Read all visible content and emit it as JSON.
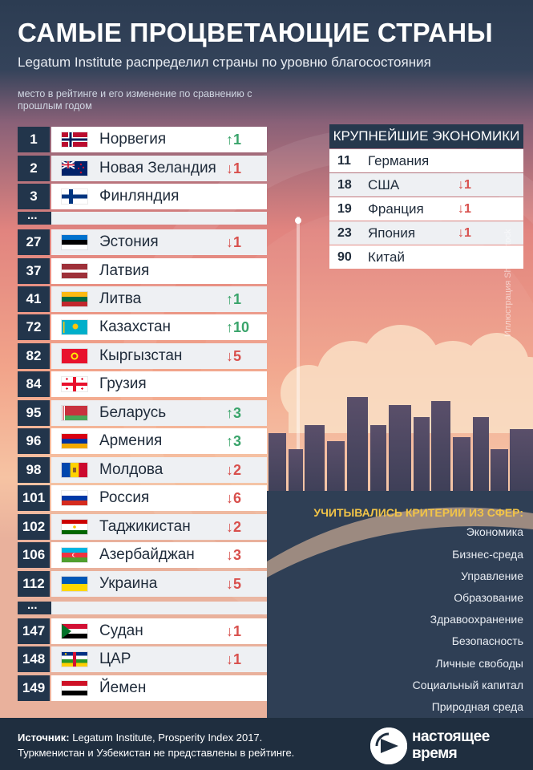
{
  "header": {
    "title": "САМЫЕ ПРОЦВЕТАЮЩИЕ СТРАНЫ",
    "subtitle": "Legatum Institute распределил страны по уровню благосостояния",
    "note": "место в рейтинге и его изменение по сравнению с прошлым годом"
  },
  "ranking": [
    {
      "rank": "1",
      "country": "Норвегия",
      "change": "↑1",
      "dir": "up",
      "flag": "norway"
    },
    {
      "rank": "2",
      "country": "Новая Зеландия",
      "change": "↓1",
      "dir": "down",
      "flag": "new-zealand"
    },
    {
      "rank": "3",
      "country": "Финляндия",
      "change": "",
      "dir": "",
      "flag": "finland"
    },
    {
      "rank": "27",
      "country": "Эстония",
      "change": "↓1",
      "dir": "down",
      "flag": "estonia"
    },
    {
      "rank": "37",
      "country": "Латвия",
      "change": "",
      "dir": "",
      "flag": "latvia"
    },
    {
      "rank": "41",
      "country": "Литва",
      "change": "↑1",
      "dir": "up",
      "flag": "lithuania"
    },
    {
      "rank": "72",
      "country": "Казахстан",
      "change": "↑10",
      "dir": "up",
      "flag": "kazakhstan"
    },
    {
      "rank": "82",
      "country": "Кыргызстан",
      "change": "↓5",
      "dir": "down",
      "flag": "kyrgyzstan"
    },
    {
      "rank": "84",
      "country": "Грузия",
      "change": "",
      "dir": "",
      "flag": "georgia"
    },
    {
      "rank": "95",
      "country": "Беларусь",
      "change": "↑3",
      "dir": "up",
      "flag": "belarus"
    },
    {
      "rank": "96",
      "country": "Армения",
      "change": "↑3",
      "dir": "up",
      "flag": "armenia"
    },
    {
      "rank": "98",
      "country": "Молдова",
      "change": "↓2",
      "dir": "down",
      "flag": "moldova"
    },
    {
      "rank": "101",
      "country": "Россия",
      "change": "↓6",
      "dir": "down",
      "flag": "russia"
    },
    {
      "rank": "102",
      "country": "Таджикистан",
      "change": "↓2",
      "dir": "down",
      "flag": "tajikistan"
    },
    {
      "rank": "106",
      "country": "Азербайджан",
      "change": "↓3",
      "dir": "down",
      "flag": "azerbaijan"
    },
    {
      "rank": "112",
      "country": "Украина",
      "change": "↓5",
      "dir": "down",
      "flag": "ukraine"
    },
    {
      "rank": "147",
      "country": "Судан",
      "change": "↓1",
      "dir": "down",
      "flag": "sudan"
    },
    {
      "rank": "148",
      "country": "ЦАР",
      "change": "↓1",
      "dir": "down",
      "flag": "car"
    },
    {
      "rank": "149",
      "country": "Йемен",
      "change": "",
      "dir": "",
      "flag": "yemen"
    }
  ],
  "separator": "...",
  "economies": {
    "title": "КРУПНЕЙШИЕ ЭКОНОМИКИ",
    "items": [
      {
        "rank": "11",
        "country": "Германия",
        "change": ""
      },
      {
        "rank": "18",
        "country": "США",
        "change": "↓1"
      },
      {
        "rank": "19",
        "country": "Франция",
        "change": "↓1"
      },
      {
        "rank": "23",
        "country": "Япония",
        "change": "↓1"
      },
      {
        "rank": "90",
        "country": "Китай",
        "change": ""
      }
    ]
  },
  "criteria": {
    "title": "УЧИТЫВАЛИСЬ КРИТЕРИИ ИЗ СФЕР:",
    "items": [
      "Экономика",
      "Бизнес-среда",
      "Управление",
      "Образование",
      "Здравоохранение",
      "Безопасность",
      "Личные свободы",
      "Социальный капитал",
      "Природная среда"
    ]
  },
  "footer": {
    "source_label": "Источник:",
    "source_text": " Legatum Institute, Prosperity Index 2017.",
    "note": "Туркменистан и Узбекистан не представлены в рейтинге."
  },
  "credit": "Иллюстрация Shutterstock",
  "logo": {
    "line1": "настоящее",
    "line2": "время"
  },
  "colors": {
    "up": "#3aa46b",
    "down": "#d8504d",
    "rank_bg": "#22354b",
    "criteria_title": "#f2c447"
  }
}
